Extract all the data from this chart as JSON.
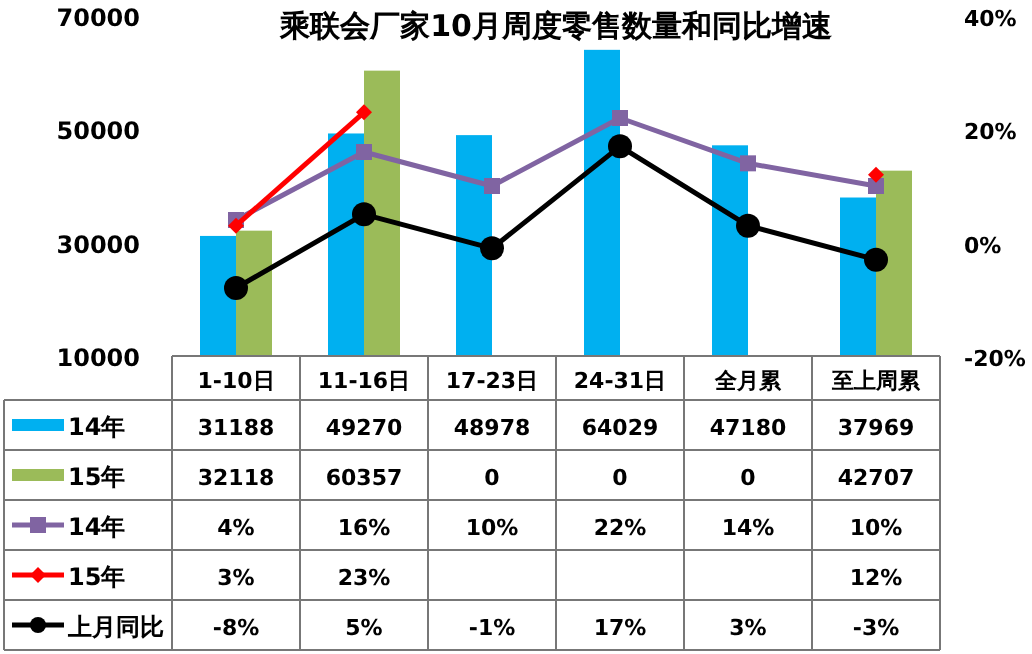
{
  "chart_data": {
    "type": "bar",
    "title": "乘联会厂家10月周度零售数量和同比增速",
    "categories": [
      "1-10日",
      "11-16日",
      "17-23日",
      "24-31日",
      "全月累",
      "至上周累"
    ],
    "series": [
      {
        "name": "14年",
        "color": "#00b0f0",
        "values": [
          31188,
          49270,
          48978,
          64029,
          47180,
          37969
        ],
        "value_labels": [
          "31188",
          "49270",
          "48978",
          "64029",
          "47180",
          "37969"
        ]
      },
      {
        "name": "15年",
        "color": "#9bbb59",
        "values": [
          32118,
          60357,
          null,
          null,
          null,
          42707
        ],
        "value_labels": [
          "32118",
          "60357",
          "0",
          "0",
          "0",
          "42707"
        ]
      },
      {
        "name": "14年",
        "type": "line",
        "axis": "y2",
        "color": "#8064a2",
        "marker": "square",
        "values": [
          4,
          16,
          10,
          22,
          14,
          10
        ],
        "value_labels": [
          "4%",
          "16%",
          "10%",
          "22%",
          "14%",
          "10%"
        ]
      },
      {
        "name": "15年",
        "type": "line",
        "axis": "y2",
        "color": "#ff0000",
        "marker": "diamond",
        "values": [
          3,
          23,
          null,
          null,
          null,
          12
        ],
        "value_labels": [
          "3%",
          "23%",
          null,
          null,
          null,
          "12%"
        ]
      },
      {
        "name": "上月同比",
        "type": "line",
        "axis": "y2",
        "color": "#000000",
        "marker": "circle",
        "values": [
          -8,
          5,
          -1,
          17,
          3,
          -3
        ],
        "value_labels": [
          "-8%",
          "5%",
          "-1%",
          "17%",
          "3%",
          "-3%"
        ]
      }
    ],
    "legend": "bottom left",
    "ylim": [
      10000,
      70000
    ],
    "yticks": [
      10000,
      30000,
      50000,
      70000
    ],
    "y2lim": [
      -20,
      40
    ],
    "y2ticks": [
      {
        "value": -20,
        "label": "-20%"
      },
      {
        "value": 0,
        "label": "0%"
      },
      {
        "value": 20,
        "label": "20%"
      },
      {
        "value": 40,
        "label": "40%"
      }
    ]
  }
}
